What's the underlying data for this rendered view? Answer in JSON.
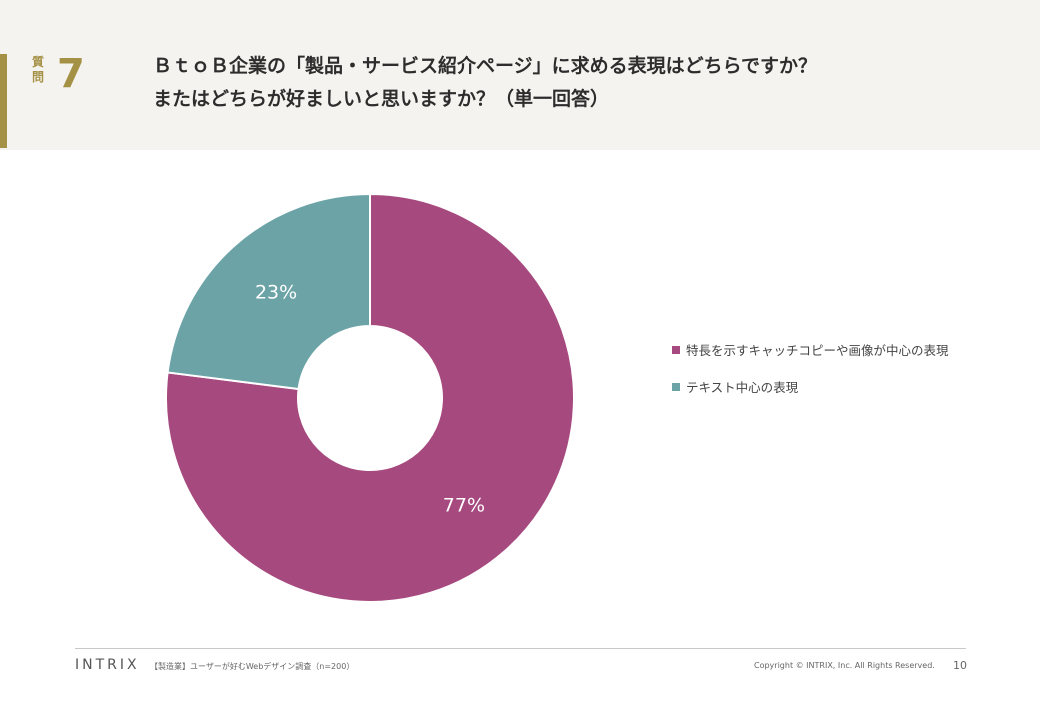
{
  "header": {
    "question_label": "質\n問",
    "question_number": "7",
    "title_line1": "ＢｔｏＢ企業の「製品・サービス紹介ページ」に求める表現はどちらですか？",
    "title_line2": "またはどちらが好ましいと思いますか？（単一回答）"
  },
  "colors": {
    "accent": "#a59146",
    "header_bg": "#f5f3ef"
  },
  "chart_data": {
    "type": "pie",
    "donut": true,
    "start_angle": "12 o'clock, clockwise",
    "series": [
      {
        "name": "特長を示すキャッチコピーや画像が中心の表現",
        "value": 77,
        "label": "77%",
        "color": "#a6497f"
      },
      {
        "name": "テキスト中心の表現",
        "value": 23,
        "label": "23%",
        "color": "#6ba3a7"
      }
    ],
    "legend_position": "right"
  },
  "footer": {
    "logo": "INTRIX",
    "survey": "【製造業】ユーザーが好むWebデザイン調査（n=200）",
    "copyright": "Copyright © INTRIX, Inc. All Rights Reserved.",
    "page_number": "10"
  }
}
